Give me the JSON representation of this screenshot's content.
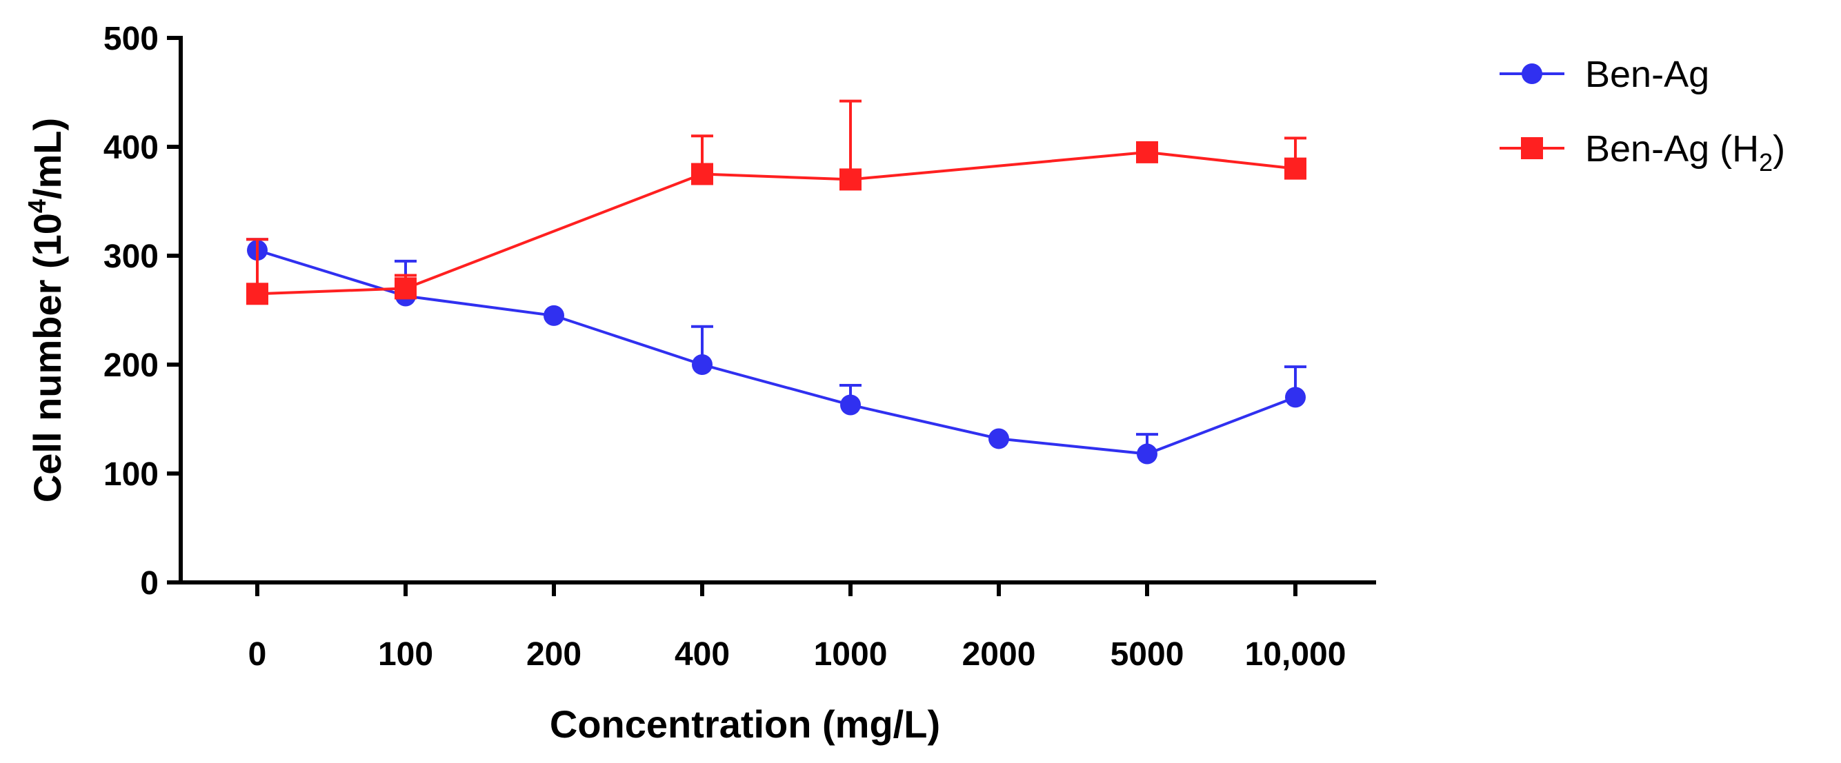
{
  "chart_data": {
    "type": "line",
    "title": "",
    "xlabel": "Concentration (mg/L)",
    "ylabel_parts": {
      "prefix": "Cell number (10",
      "superscript": "4",
      "suffix": "/mL)"
    },
    "categories": [
      "0",
      "100",
      "200",
      "400",
      "1000",
      "2000",
      "5000",
      "10,000"
    ],
    "ylim": [
      0,
      500
    ],
    "yticks": [
      "0",
      "100",
      "200",
      "300",
      "400",
      "500"
    ],
    "legend_position": "top-right",
    "series": [
      {
        "name": "Ben-Ag",
        "legend_parts": {
          "text": "Ben-Ag",
          "subscript": "",
          "after": ""
        },
        "color": "#3030f0",
        "marker": "circle",
        "values": [
          305,
          263,
          245,
          200,
          163,
          132,
          118,
          170
        ],
        "error_upper": [
          10,
          32,
          0,
          35,
          18,
          0,
          18,
          28
        ]
      },
      {
        "name": "Ben-Ag (H2)",
        "legend_parts": {
          "text": "Ben-Ag (H",
          "subscript": "2",
          "after": ")"
        },
        "color": "#ff2020",
        "marker": "square",
        "values": [
          265,
          270,
          null,
          375,
          370,
          null,
          395,
          380
        ],
        "error_upper": [
          50,
          12,
          0,
          35,
          72,
          0,
          0,
          28
        ]
      }
    ]
  }
}
